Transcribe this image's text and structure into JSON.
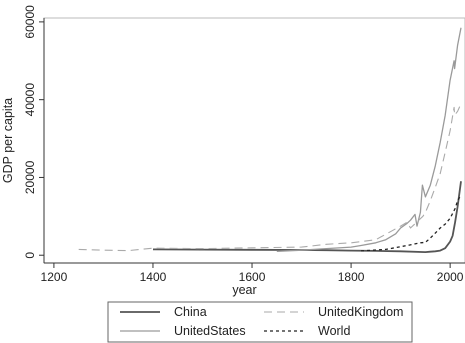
{
  "chart_data": {
    "type": "line",
    "title": "",
    "xlabel": "year",
    "ylabel": "GDP per capita",
    "xlim": [
      1180,
      2030
    ],
    "ylim": [
      -2000,
      61000
    ],
    "xticks": [
      1200,
      1400,
      1600,
      1800,
      2000
    ],
    "yticks": [
      0,
      20000,
      40000,
      60000
    ],
    "grid": false,
    "legend_position": "bottom",
    "series": [
      {
        "name": "China",
        "color": "#555555",
        "dash": "solid",
        "width": 1.8,
        "x": [
          1400,
          1500,
          1600,
          1700,
          1750,
          1800,
          1850,
          1900,
          1950,
          1960,
          1970,
          1980,
          1990,
          2000,
          2005,
          2010,
          2015,
          2022
        ],
        "y": [
          1500,
          1450,
          1400,
          1350,
          1300,
          1200,
          1100,
          1000,
          800,
          900,
          1000,
          1200,
          1800,
          3500,
          5000,
          8500,
          12500,
          19000
        ]
      },
      {
        "name": "UnitedStates",
        "color": "#9a9a9a",
        "dash": "solid",
        "width": 1.3,
        "x": [
          1650,
          1700,
          1750,
          1800,
          1820,
          1850,
          1870,
          1890,
          1900,
          1913,
          1920,
          1929,
          1933,
          1940,
          1944,
          1950,
          1960,
          1970,
          1980,
          1990,
          2000,
          2008,
          2009,
          2015,
          2022
        ],
        "y": [
          1000,
          1300,
          1700,
          2100,
          2500,
          3200,
          4000,
          5500,
          7000,
          8200,
          9000,
          10500,
          7500,
          11000,
          18000,
          15000,
          18000,
          23000,
          29000,
          36000,
          45000,
          50000,
          48000,
          54000,
          58500
        ]
      },
      {
        "name": "UnitedKingdom",
        "color": "#aaaaaa",
        "dash": "8 5",
        "width": 1.1,
        "x": [
          1250,
          1300,
          1350,
          1400,
          1500,
          1600,
          1700,
          1750,
          1800,
          1850,
          1900,
          1913,
          1920,
          1945,
          1950,
          1960,
          1970,
          1980,
          1990,
          2000,
          2008,
          2009,
          2015,
          2022
        ],
        "y": [
          1500,
          1300,
          1200,
          1800,
          1700,
          1900,
          2100,
          2800,
          3200,
          4000,
          7500,
          8500,
          7000,
          10000,
          11000,
          14000,
          17500,
          21000,
          26500,
          32000,
          38000,
          36000,
          37000,
          39000
        ]
      },
      {
        "name": "World",
        "color": "#222222",
        "dash": "3 3",
        "width": 1.3,
        "x": [
          1820,
          1870,
          1900,
          1913,
          1940,
          1950,
          1960,
          1970,
          1980,
          1990,
          2000,
          2010,
          2015,
          2022
        ],
        "y": [
          1100,
          1500,
          2200,
          2500,
          3200,
          3300,
          4400,
          5700,
          7000,
          8000,
          9500,
          12000,
          14000,
          15500
        ]
      }
    ]
  }
}
